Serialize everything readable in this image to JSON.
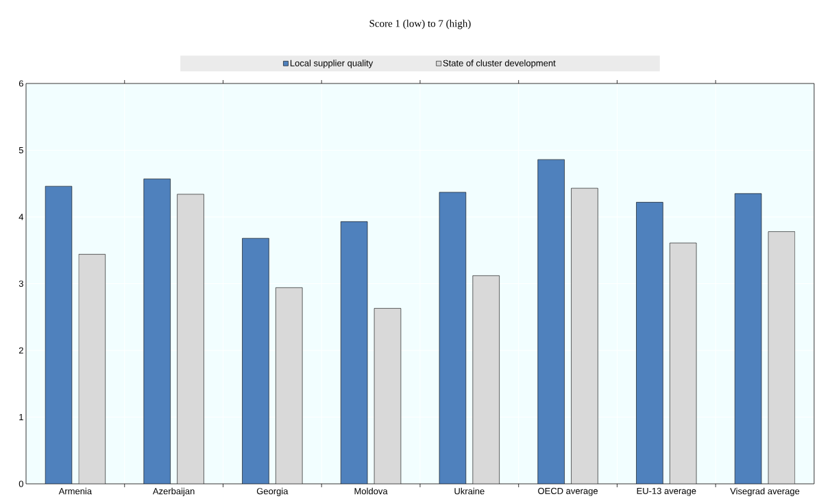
{
  "chart_data": {
    "type": "bar",
    "title": "Score 1 (low) to 7 (high)",
    "categories": [
      "Armenia",
      "Azerbaijan",
      "Georgia",
      "Moldova",
      "Ukraine",
      "OECD average",
      "EU-13 average",
      "Visegrad average"
    ],
    "series": [
      {
        "name": "Local supplier quality",
        "color": "#4f81bd",
        "values": [
          4.46,
          4.57,
          3.68,
          3.93,
          4.37,
          4.86,
          4.22,
          4.35
        ]
      },
      {
        "name": "State of cluster development",
        "color": "#d9d9d9",
        "values": [
          3.44,
          4.34,
          2.94,
          2.63,
          3.12,
          4.43,
          3.61,
          3.78
        ]
      }
    ],
    "ylim": [
      0,
      6
    ],
    "yticks": [
      0,
      1,
      2,
      3,
      4,
      5,
      6
    ],
    "grid": true,
    "legend": "top"
  }
}
